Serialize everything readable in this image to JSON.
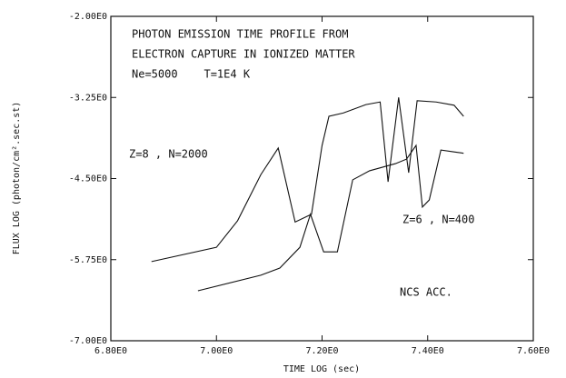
{
  "chart_data": {
    "type": "line",
    "title": [
      "PHOTON EMISSION TIME PROFILE FROM",
      "ELECTRON CAPTURE IN IONIZED MATTER"
    ],
    "subtitle": "Ne=5000    T=1E4 K",
    "annotation": "NCS ACC.",
    "xlabel": "TIME LOG (sec)",
    "ylabel": "FLUX LOG (photon/cm².sec.st)",
    "xlim": [
      6.8,
      7.6
    ],
    "xticks": [
      {
        "value": 6.8,
        "label": "6.80E0"
      },
      {
        "value": 7.0,
        "label": "7.00E0"
      },
      {
        "value": 7.2,
        "label": "7.20E0"
      },
      {
        "value": 7.4,
        "label": "7.40E0"
      },
      {
        "value": 7.6,
        "label": "7.60E0"
      }
    ],
    "ylim": [
      -7.0,
      -2.0
    ],
    "yticks": [
      {
        "value": -7.0,
        "label": "-7.00E0"
      },
      {
        "value": -5.75,
        "label": "-5.75E0"
      },
      {
        "value": -4.5,
        "label": "-4.50E0"
      },
      {
        "value": -3.25,
        "label": "-3.25E0"
      },
      {
        "value": -2.0,
        "label": "-2.00E0"
      }
    ],
    "series": [
      {
        "name": "Z=8 , N=2000",
        "color": "#111111",
        "x": [
          6.877,
          7.0,
          7.04,
          7.084,
          7.117,
          7.149,
          7.18,
          7.2,
          7.213,
          7.24,
          7.283,
          7.31,
          7.325,
          7.345,
          7.364,
          7.38,
          7.416,
          7.45,
          7.468
        ],
        "values": [
          -5.78,
          -5.56,
          -5.15,
          -4.44,
          -4.03,
          -5.17,
          -5.05,
          -3.99,
          -3.54,
          -3.49,
          -3.36,
          -3.32,
          -4.55,
          -3.25,
          -4.41,
          -3.3,
          -3.32,
          -3.37,
          -3.54
        ]
      },
      {
        "name": "Z=6 , N=400",
        "color": "#111111",
        "x": [
          6.965,
          7.084,
          7.12,
          7.158,
          7.178,
          7.203,
          7.229,
          7.258,
          7.29,
          7.339,
          7.36,
          7.378,
          7.39,
          7.403,
          7.425,
          7.45,
          7.468
        ],
        "values": [
          -6.23,
          -5.99,
          -5.88,
          -5.56,
          -5.05,
          -5.63,
          -5.63,
          -4.52,
          -4.38,
          -4.27,
          -4.2,
          -3.99,
          -4.94,
          -4.83,
          -4.06,
          -4.09,
          -4.11
        ]
      }
    ]
  }
}
